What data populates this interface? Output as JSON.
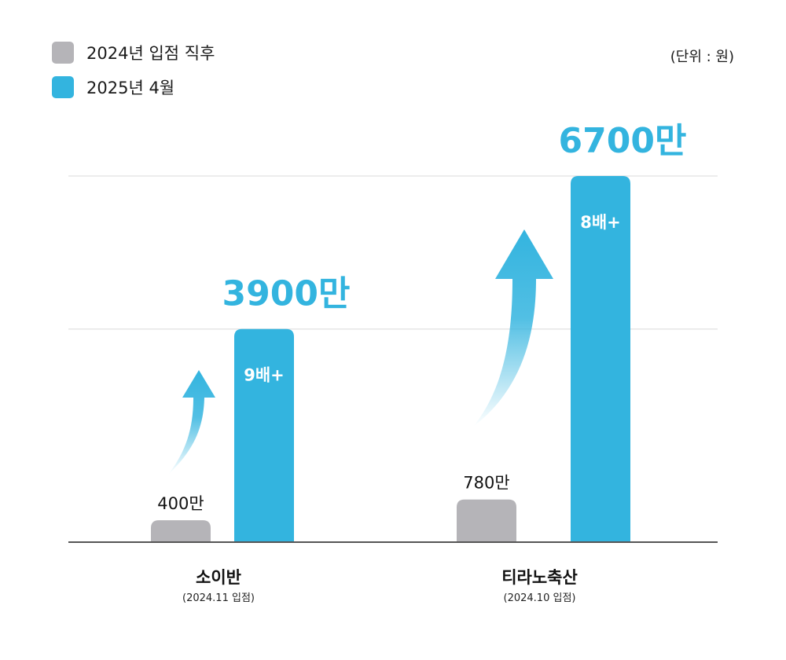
{
  "legend": {
    "items": [
      {
        "label": "2024년 입점 직후",
        "color": "#b5b4b8"
      },
      {
        "label": "2025년 4월",
        "color": "#33b4df"
      }
    ]
  },
  "unit_label": "(단위 : 원)",
  "colors": {
    "before": "#b5b4b8",
    "after": "#33b4df",
    "axis": "#555555",
    "grid": "#e6e6e6"
  },
  "chart_data": {
    "type": "bar",
    "unit": "원",
    "ylim": [
      0,
      67000000
    ],
    "grid": true,
    "legend_position": "top-left",
    "categories": [
      {
        "name": "소이반",
        "note": "(2024.11 입점)"
      },
      {
        "name": "티라노축산",
        "note": "(2024.10 입점)"
      }
    ],
    "series": [
      {
        "name": "2024년 입점 직후",
        "values": [
          4000000,
          7800000
        ],
        "labels": [
          "400만",
          "780만"
        ]
      },
      {
        "name": "2025년 4월",
        "values": [
          39000000,
          67000000
        ],
        "labels": [
          "3900만",
          "6700만"
        ],
        "multipliers": [
          "9배+",
          "8배+"
        ]
      }
    ]
  }
}
